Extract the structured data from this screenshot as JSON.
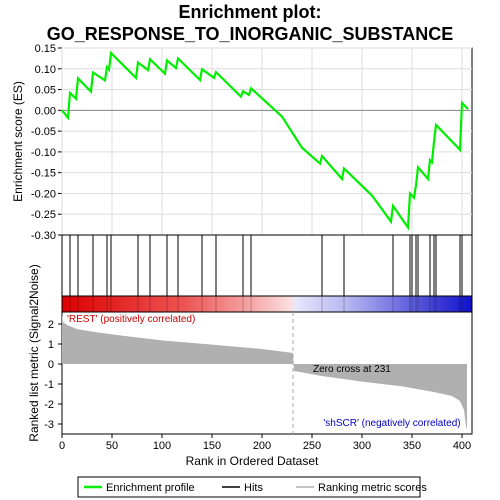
{
  "title_line1": "Enrichment plot:",
  "title_line2": "GO_RESPONSE_TO_INORGANIC_SUBSTANCE",
  "colors": {
    "es_line": "#00ee00",
    "hits": "#000000",
    "metric_fill": "#b0b0b0",
    "positive_label": "#cc0000",
    "negative_label": "#0000cc",
    "zero_cross_line": "#aaaaaa"
  },
  "legend": {
    "items": [
      {
        "label": "Enrichment profile",
        "icon": "green-line-icon",
        "color": "#00ee00"
      },
      {
        "label": "Hits",
        "icon": "black-line-icon",
        "color": "#000000"
      },
      {
        "label": "Ranking metric scores",
        "icon": "gray-line-icon",
        "color": "#b0b0b0"
      }
    ]
  },
  "chart_data": [
    {
      "type": "line",
      "name": "enrichment-profile",
      "ylabel": "Enrichment score (ES)",
      "ylim": [
        -0.3,
        0.15
      ],
      "yticks": [
        -0.3,
        -0.25,
        -0.2,
        -0.15,
        -0.1,
        -0.05,
        0.0,
        0.05,
        0.1,
        0.15
      ],
      "ytick_labels": [
        "-0.30",
        "-0.25",
        "-0.20",
        "-0.15",
        "-0.10",
        "-0.05",
        "0.00",
        "0.05",
        "0.10",
        "0.15"
      ],
      "xlim": [
        0,
        410
      ],
      "grid": true,
      "points": [
        [
          0,
          0.0
        ],
        [
          6,
          -0.018
        ],
        [
          8,
          0.042
        ],
        [
          14,
          0.028
        ],
        [
          16,
          0.077
        ],
        [
          29,
          0.045
        ],
        [
          31,
          0.091
        ],
        [
          43,
          0.072
        ],
        [
          45,
          0.104
        ],
        [
          47,
          0.098
        ],
        [
          49,
          0.138
        ],
        [
          74,
          0.078
        ],
        [
          76,
          0.115
        ],
        [
          86,
          0.097
        ],
        [
          88,
          0.123
        ],
        [
          103,
          0.088
        ],
        [
          105,
          0.12
        ],
        [
          114,
          0.102
        ],
        [
          116,
          0.125
        ],
        [
          138,
          0.073
        ],
        [
          140,
          0.099
        ],
        [
          152,
          0.078
        ],
        [
          154,
          0.092
        ],
        [
          179,
          0.033
        ],
        [
          181,
          0.046
        ],
        [
          187,
          0.037
        ],
        [
          189,
          0.053
        ],
        [
          220,
          -0.015
        ],
        [
          240,
          -0.09
        ],
        [
          258,
          -0.128
        ],
        [
          260,
          -0.11
        ],
        [
          280,
          -0.165
        ],
        [
          282,
          -0.14
        ],
        [
          310,
          -0.205
        ],
        [
          329,
          -0.268
        ],
        [
          331,
          -0.23
        ],
        [
          346,
          -0.282
        ],
        [
          348,
          -0.2
        ],
        [
          352,
          -0.21
        ],
        [
          354,
          -0.18
        ],
        [
          356,
          -0.137
        ],
        [
          366,
          -0.165
        ],
        [
          368,
          -0.12
        ],
        [
          370,
          -0.125
        ],
        [
          372,
          -0.075
        ],
        [
          374,
          -0.035
        ],
        [
          398,
          -0.095
        ],
        [
          400,
          0.018
        ],
        [
          406,
          0.003
        ]
      ]
    },
    {
      "type": "hits",
      "name": "hits",
      "positions": [
        8,
        16,
        31,
        45,
        49,
        76,
        88,
        105,
        116,
        140,
        154,
        181,
        189,
        260,
        282,
        331,
        348,
        350,
        354,
        356,
        368,
        372,
        374,
        398,
        400
      ]
    },
    {
      "type": "area",
      "name": "ranking-metric",
      "ylabel": "Ranked list metric (Signal2Noise)",
      "xlabel": "Rank in Ordered Dataset",
      "ylim": [
        -3.5,
        2.6
      ],
      "yticks": [
        -3,
        -2,
        -1,
        0,
        1,
        2
      ],
      "xticks": [
        0,
        50,
        100,
        150,
        200,
        250,
        300,
        350,
        400
      ],
      "xlim": [
        0,
        410
      ],
      "zero_cross": 231,
      "points": [
        [
          0,
          2.5
        ],
        [
          1,
          2.1
        ],
        [
          5,
          1.95
        ],
        [
          15,
          1.75
        ],
        [
          30,
          1.62
        ],
        [
          60,
          1.42
        ],
        [
          100,
          1.18
        ],
        [
          150,
          0.97
        ],
        [
          200,
          0.75
        ],
        [
          231,
          0.55
        ],
        [
          231.5,
          0.0
        ],
        [
          232,
          -0.35
        ],
        [
          260,
          -0.6
        ],
        [
          300,
          -0.88
        ],
        [
          340,
          -1.12
        ],
        [
          370,
          -1.38
        ],
        [
          390,
          -1.6
        ],
        [
          398,
          -1.85
        ],
        [
          402,
          -2.3
        ],
        [
          404,
          -3.1
        ],
        [
          405,
          -3.3
        ]
      ],
      "positive_label": "'REST' (positively correlated)",
      "negative_label": "'shSCR' (negatively correlated)",
      "zero_cross_label": "Zero cross at 231"
    }
  ]
}
